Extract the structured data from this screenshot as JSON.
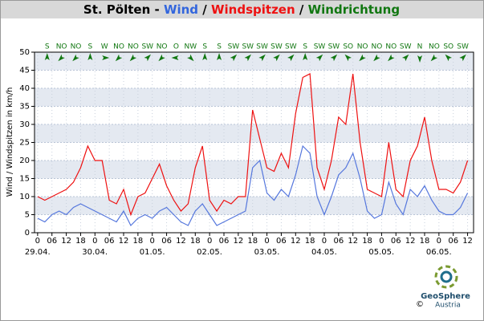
{
  "chart_data": {
    "type": "line",
    "title_parts": [
      {
        "text": "St. Pölten - ",
        "color": "#000000"
      },
      {
        "text": "Wind",
        "color": "#3366dd"
      },
      {
        "text": " / ",
        "color": "#000000"
      },
      {
        "text": "Windspitzen",
        "color": "#ee1111"
      },
      {
        "text": " / ",
        "color": "#000000"
      },
      {
        "text": "Windrichtung",
        "color": "#117711"
      }
    ],
    "y_label": "Wind / Windspitzen in km/h",
    "x": [
      0,
      3,
      6,
      9,
      12,
      15,
      18,
      21,
      24,
      27,
      30,
      33,
      36,
      39,
      42,
      45,
      48,
      51,
      54,
      57,
      60,
      63,
      66,
      69,
      72,
      75,
      78,
      81,
      84,
      87,
      90,
      93,
      96,
      99,
      102,
      105,
      108,
      111,
      114,
      117,
      120,
      123,
      126,
      129,
      132,
      135,
      138,
      141,
      144,
      147,
      150,
      153,
      156,
      159,
      162,
      165,
      168,
      171,
      174,
      177,
      180
    ],
    "series": [
      {
        "name": "Windspitzen",
        "color": "#ee1111",
        "values": [
          10,
          9,
          10,
          11,
          12,
          14,
          18,
          24,
          20,
          20,
          9,
          8,
          12,
          5,
          10,
          11,
          15,
          19,
          13,
          9,
          6,
          8,
          18,
          24,
          9,
          6,
          9,
          8,
          10,
          10,
          34,
          26,
          18,
          17,
          22,
          18,
          33,
          43,
          44,
          18,
          12,
          20,
          32,
          30,
          44,
          25,
          12,
          11,
          10,
          25,
          12,
          10,
          20,
          24,
          32,
          20,
          12,
          12,
          11,
          14,
          20
        ]
      },
      {
        "name": "Wind",
        "color": "#5577dd",
        "values": [
          4,
          3,
          5,
          6,
          5,
          7,
          8,
          7,
          6,
          5,
          4,
          3,
          6,
          2,
          4,
          5,
          4,
          6,
          7,
          5,
          3,
          2,
          6,
          8,
          5,
          2,
          3,
          4,
          5,
          6,
          18,
          20,
          11,
          9,
          12,
          10,
          16,
          24,
          22,
          10,
          5,
          10,
          16,
          18,
          22,
          15,
          6,
          4,
          5,
          14,
          8,
          5,
          12,
          10,
          13,
          9,
          6,
          5,
          5,
          7,
          11
        ]
      }
    ],
    "directions": {
      "x": [
        4,
        10,
        16,
        22,
        28,
        34,
        40,
        46,
        52,
        58,
        64,
        70,
        76,
        82,
        88,
        94,
        100,
        106,
        112,
        118,
        124,
        130,
        136,
        142,
        148,
        154,
        160,
        166,
        172,
        178
      ],
      "labels": [
        "S",
        "NO",
        "NO",
        "S",
        "W",
        "NO",
        "NO",
        "SW",
        "NO",
        "O",
        "NW",
        "S",
        "S",
        "SW",
        "SW",
        "SW",
        "SW",
        "SW",
        "S",
        "SW",
        "SW",
        "SO",
        "NO",
        "NO",
        "NO",
        "SW",
        "N",
        "NO",
        "SO",
        "SW"
      ]
    },
    "xlim": [
      -1.3,
      182.5
    ],
    "ylim": [
      0,
      50
    ],
    "yticks": [
      0,
      5,
      10,
      15,
      20,
      25,
      30,
      35,
      40,
      45,
      50
    ],
    "xticks": [
      {
        "value": 0,
        "label": "0"
      },
      {
        "value": 6,
        "label": "06"
      },
      {
        "value": 12,
        "label": "12"
      },
      {
        "value": 18,
        "label": "18"
      },
      {
        "value": 24,
        "label": "0"
      },
      {
        "value": 30,
        "label": "06"
      },
      {
        "value": 36,
        "label": "12"
      },
      {
        "value": 42,
        "label": "18"
      },
      {
        "value": 48,
        "label": "0"
      },
      {
        "value": 54,
        "label": "06"
      },
      {
        "value": 60,
        "label": "12"
      },
      {
        "value": 66,
        "label": "18"
      },
      {
        "value": 72,
        "label": "0"
      },
      {
        "value": 78,
        "label": "06"
      },
      {
        "value": 84,
        "label": "12"
      },
      {
        "value": 90,
        "label": "18"
      },
      {
        "value": 96,
        "label": "0"
      },
      {
        "value": 102,
        "label": "06"
      },
      {
        "value": 108,
        "label": "12"
      },
      {
        "value": 114,
        "label": "18"
      },
      {
        "value": 120,
        "label": "0"
      },
      {
        "value": 126,
        "label": "06"
      },
      {
        "value": 132,
        "label": "12"
      },
      {
        "value": 138,
        "label": "18"
      },
      {
        "value": 144,
        "label": "0"
      },
      {
        "value": 150,
        "label": "06"
      },
      {
        "value": 156,
        "label": "12"
      },
      {
        "value": 162,
        "label": "18"
      },
      {
        "value": 168,
        "label": "0"
      },
      {
        "value": 174,
        "label": "06"
      },
      {
        "value": 180,
        "label": "12"
      }
    ],
    "date_labels": [
      {
        "value": 0,
        "label": "29.04."
      },
      {
        "value": 24,
        "label": "30.04."
      },
      {
        "value": 48,
        "label": "01.05."
      },
      {
        "value": 72,
        "label": "02.05."
      },
      {
        "value": 96,
        "label": "03.05."
      },
      {
        "value": 120,
        "label": "04.05."
      },
      {
        "value": 144,
        "label": "05.05."
      },
      {
        "value": 168,
        "label": "06.05."
      }
    ],
    "grid": true,
    "logo": {
      "name": "GeoSphere",
      "sub": "Austria",
      "copyright": "©"
    }
  }
}
